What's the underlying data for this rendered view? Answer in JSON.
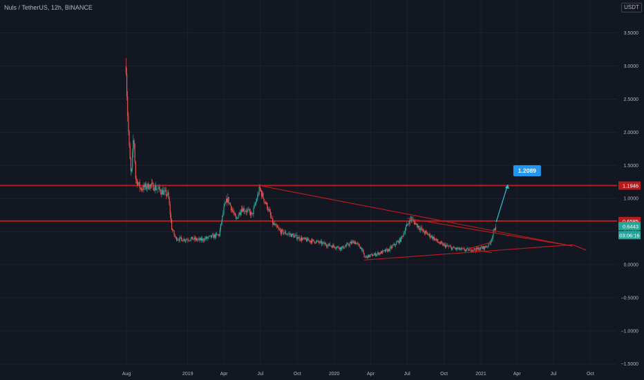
{
  "header": {
    "symbol": "Nuls / TetherUS, 12h, BINANCE"
  },
  "axis": {
    "unit": "USDT"
  },
  "chart_data": {
    "type": "candlestick",
    "title": "Nuls / TetherUS, 12h, BINANCE",
    "ylim": [
      -1.6,
      3.8
    ],
    "y_ticks": [
      "3.5000",
      "3.0000",
      "2.5000",
      "2.0000",
      "1.5000",
      "1.0000",
      "0.5000",
      "0.0000",
      "−0.5000",
      "−1.0000",
      "−1.5000"
    ],
    "y_tick_values": [
      3.5,
      3.0,
      2.5,
      2.0,
      1.5,
      1.0,
      0.5,
      0.0,
      -0.5,
      -1.0,
      -1.5
    ],
    "x_ticks": [
      "Aug",
      "2019",
      "Apr",
      "Jul",
      "Oct",
      "2020",
      "Apr",
      "Jul",
      "Oct",
      "2021",
      "Apr",
      "Jul",
      "Oct"
    ],
    "x_tick_dates": [
      "2018-08",
      "2019-01",
      "2019-04",
      "2019-07",
      "2019-10",
      "2020-01",
      "2020-04",
      "2020-07",
      "2020-10",
      "2021-01",
      "2021-04",
      "2021-07",
      "2021-10"
    ],
    "horizontal_levels": [
      {
        "value": 1.1946,
        "label": "1.1946",
        "color": "#b71c1c"
      },
      {
        "value": 0.6585,
        "label": "0.6585",
        "color": "#b71c1c"
      }
    ],
    "price_tags": [
      {
        "value": 0.6443,
        "label": "0.6443",
        "color": "#26a69a"
      }
    ],
    "countdown": "03:06:16",
    "target": {
      "value": 1.2089,
      "label": "1.2089",
      "color": "#2196f3"
    },
    "price_path": [
      [
        "2018-07-31",
        3.0
      ],
      [
        "2018-08-03",
        2.4
      ],
      [
        "2018-08-08",
        1.75
      ],
      [
        "2018-08-13",
        1.3
      ],
      [
        "2018-08-19",
        1.98
      ],
      [
        "2018-08-24",
        1.3
      ],
      [
        "2018-09-05",
        1.15
      ],
      [
        "2018-10-01",
        1.2
      ],
      [
        "2018-10-30",
        1.1
      ],
      [
        "2018-11-13",
        1.05
      ],
      [
        "2018-11-22",
        0.55
      ],
      [
        "2018-12-01",
        0.4
      ],
      [
        "2018-12-20",
        0.38
      ],
      [
        "2019-01-10",
        0.39
      ],
      [
        "2019-02-01",
        0.37
      ],
      [
        "2019-03-01",
        0.42
      ],
      [
        "2019-03-20",
        0.45
      ],
      [
        "2019-04-01",
        0.85
      ],
      [
        "2019-04-10",
        1.0
      ],
      [
        "2019-04-20",
        0.85
      ],
      [
        "2019-05-01",
        0.68
      ],
      [
        "2019-05-15",
        0.85
      ],
      [
        "2019-06-01",
        0.8
      ],
      [
        "2019-06-10",
        0.75
      ],
      [
        "2019-06-20",
        0.95
      ],
      [
        "2019-06-29",
        1.15
      ],
      [
        "2019-07-10",
        0.98
      ],
      [
        "2019-07-20",
        0.85
      ],
      [
        "2019-08-01",
        0.62
      ],
      [
        "2019-08-20",
        0.5
      ],
      [
        "2019-09-15",
        0.45
      ],
      [
        "2019-10-15",
        0.38
      ],
      [
        "2019-11-15",
        0.35
      ],
      [
        "2019-12-15",
        0.3
      ],
      [
        "2020-01-20",
        0.25
      ],
      [
        "2020-02-20",
        0.35
      ],
      [
        "2020-03-10",
        0.24
      ],
      [
        "2020-03-16",
        0.11
      ],
      [
        "2020-04-15",
        0.16
      ],
      [
        "2020-05-15",
        0.22
      ],
      [
        "2020-06-15",
        0.38
      ],
      [
        "2020-07-01",
        0.6
      ],
      [
        "2020-07-10",
        0.7
      ],
      [
        "2020-07-25",
        0.6
      ],
      [
        "2020-08-10",
        0.5
      ],
      [
        "2020-09-01",
        0.42
      ],
      [
        "2020-09-20",
        0.32
      ],
      [
        "2020-10-20",
        0.25
      ],
      [
        "2020-11-20",
        0.22
      ],
      [
        "2020-12-20",
        0.23
      ],
      [
        "2021-01-10",
        0.26
      ],
      [
        "2021-01-20",
        0.3
      ],
      [
        "2021-01-28",
        0.4
      ],
      [
        "2021-02-05",
        0.55
      ],
      [
        "2021-02-08",
        0.6443
      ]
    ],
    "trend_lines": [
      {
        "from": [
          "2019-06-29",
          1.1946
        ],
        "to": [
          "2021-08-18",
          0.28
        ],
        "color": "#b71c1c"
      },
      {
        "from": [
          "2020-07-01",
          0.7
        ],
        "to": [
          "2021-08-18",
          0.28
        ],
        "color": "#b71c1c"
      },
      {
        "from": [
          "2020-03-16",
          0.07
        ],
        "to": [
          "2021-08-18",
          0.3
        ],
        "color": "#b71c1c"
      },
      {
        "from": [
          "2021-08-18",
          0.3
        ],
        "to": [
          "2021-09-20",
          0.22
        ],
        "color": "#b71c1c"
      },
      {
        "from": [
          "2020-12-01",
          0.24
        ],
        "to": [
          "2021-01-28",
          0.34
        ],
        "color": "#b71c1c"
      },
      {
        "from": [
          "2020-12-01",
          0.24
        ],
        "to": [
          "2021-01-28",
          0.18
        ],
        "color": "#b71c1c"
      }
    ],
    "projection": {
      "from": [
        "2021-02-08",
        0.6443
      ],
      "to": [
        "2021-03-09",
        1.2089
      ],
      "color": "#26c6da"
    }
  }
}
